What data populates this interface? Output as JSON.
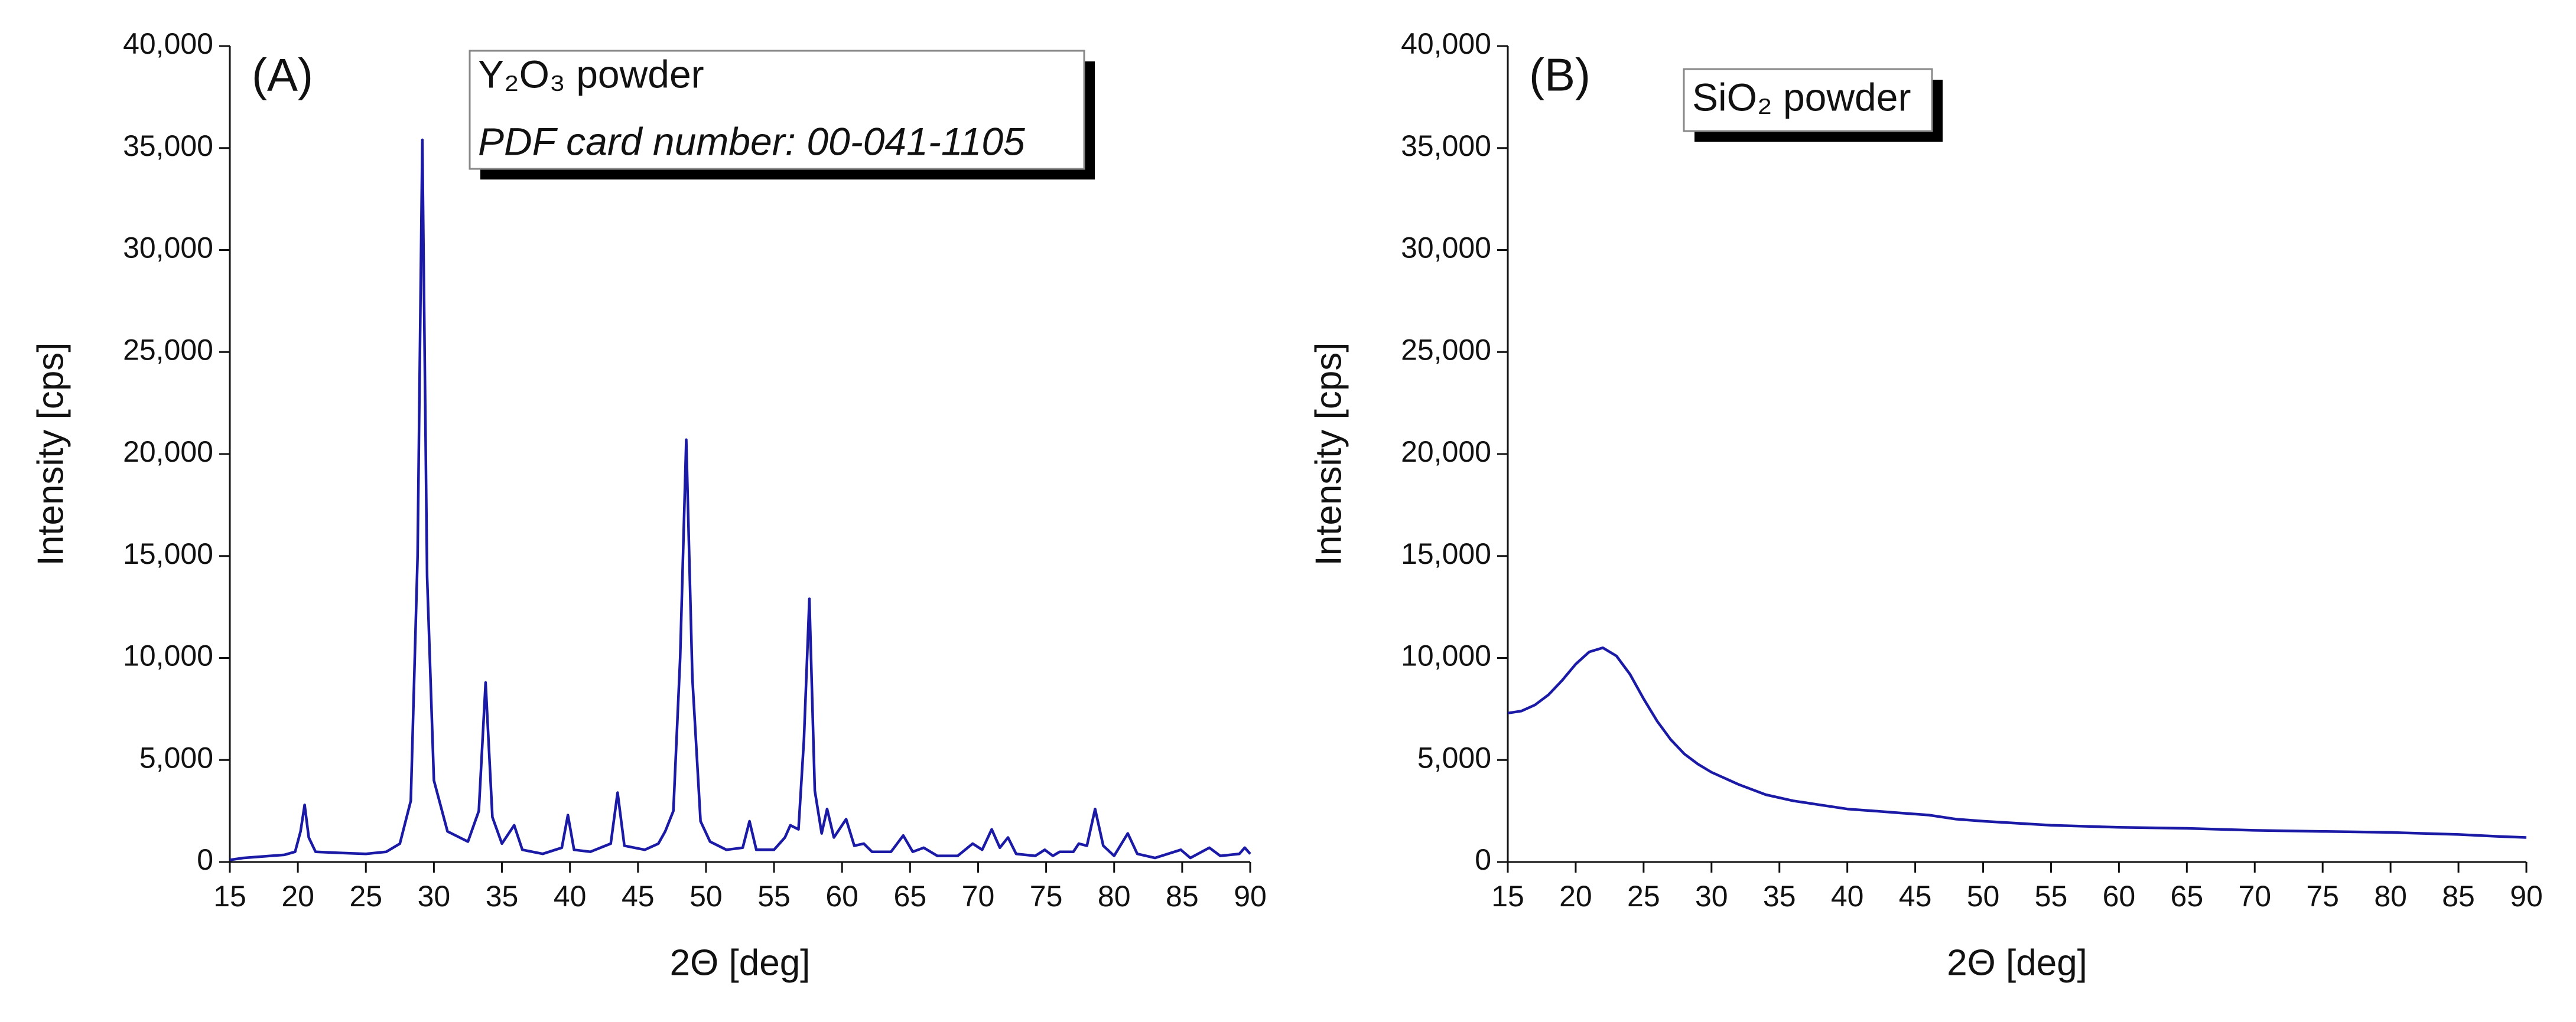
{
  "chart_data": [
    {
      "type": "line",
      "panel_label": "(A)",
      "annotations": [
        "Y₂O₃ powder",
        "PDF card number: 00-041-1105"
      ],
      "xlabel": "2Θ [deg]",
      "ylabel": "Intensity [cps]",
      "color": "#1a1aa6",
      "xlim": [
        15,
        90
      ],
      "ylim": [
        0,
        40000
      ],
      "xticks": [
        15,
        20,
        25,
        30,
        35,
        40,
        45,
        50,
        55,
        60,
        65,
        70,
        75,
        80,
        85,
        90
      ],
      "yticks": [
        0,
        {
          "value": 5000,
          "label": "5,000"
        },
        {
          "value": 10000,
          "label": "10,000"
        },
        {
          "value": 15000,
          "label": "15,000"
        },
        {
          "value": 20000,
          "label": "20,000"
        },
        {
          "value": 25000,
          "label": "25,000"
        },
        {
          "value": 30000,
          "label": "30,000"
        },
        {
          "value": 35000,
          "label": "35,000"
        },
        {
          "value": 40000,
          "label": "40,000"
        }
      ],
      "x": [
        15,
        16,
        17,
        18,
        19,
        19.8,
        20.2,
        20.5,
        20.8,
        21.3,
        23,
        25,
        26.5,
        27.5,
        28.3,
        28.8,
        29.15,
        29.5,
        30,
        31,
        32.5,
        33.3,
        33.8,
        34.3,
        35,
        35.9,
        36.5,
        38,
        39.4,
        39.85,
        40.3,
        41.5,
        43,
        43.5,
        44,
        45.5,
        46.5,
        47,
        47.6,
        48.1,
        48.55,
        49,
        49.6,
        50.3,
        51.5,
        52.7,
        53.2,
        53.7,
        55,
        55.8,
        56.2,
        56.8,
        57.2,
        57.6,
        58,
        58.5,
        58.9,
        59.4,
        60.3,
        60.9,
        61.6,
        62.2,
        63,
        63.6,
        64.5,
        65.2,
        66,
        67,
        68.5,
        69.6,
        70.3,
        71,
        71.6,
        72.2,
        72.8,
        74.2,
        74.9,
        75.5,
        76,
        77,
        77.4,
        78,
        78.6,
        79.2,
        80,
        81,
        81.7,
        83,
        84.9,
        85.6,
        87,
        87.8,
        89.2,
        89.6,
        90
      ],
      "values": [
        100,
        200,
        250,
        300,
        350,
        500,
        1500,
        2800,
        1200,
        500,
        450,
        400,
        500,
        900,
        3000,
        15000,
        35400,
        14000,
        4000,
        1500,
        1000,
        2500,
        8800,
        2200,
        900,
        1800,
        600,
        400,
        700,
        2300,
        600,
        500,
        900,
        3400,
        800,
        600,
        900,
        1500,
        2500,
        10000,
        20700,
        9000,
        2000,
        1000,
        600,
        700,
        2000,
        600,
        600,
        1200,
        1800,
        1600,
        6000,
        12900,
        3500,
        1400,
        2600,
        1200,
        2100,
        800,
        900,
        500,
        500,
        500,
        1300,
        500,
        700,
        300,
        300,
        900,
        600,
        1600,
        700,
        1200,
        400,
        300,
        600,
        300,
        500,
        500,
        900,
        800,
        2600,
        800,
        300,
        1400,
        400,
        200,
        600,
        200,
        700,
        300,
        400,
        700,
        400
      ]
    },
    {
      "type": "line",
      "panel_label": "(B)",
      "annotations": [
        "SiO₂ powder"
      ],
      "xlabel": "2Θ [deg]",
      "ylabel": "Intensity [cps]",
      "color": "#1a1aa6",
      "xlim": [
        15,
        90
      ],
      "ylim": [
        0,
        40000
      ],
      "xticks": [
        15,
        20,
        25,
        30,
        35,
        40,
        45,
        50,
        55,
        60,
        65,
        70,
        75,
        80,
        85,
        90
      ],
      "yticks": [
        0,
        {
          "value": 5000,
          "label": "5,000"
        },
        {
          "value": 10000,
          "label": "10,000"
        },
        {
          "value": 15000,
          "label": "15,000"
        },
        {
          "value": 20000,
          "label": "20,000"
        },
        {
          "value": 25000,
          "label": "25,000"
        },
        {
          "value": 30000,
          "label": "30,000"
        },
        {
          "value": 35000,
          "label": "35,000"
        },
        {
          "value": 40000,
          "label": "40,000"
        }
      ],
      "x": [
        15,
        16,
        17,
        18,
        19,
        20,
        21,
        22,
        23,
        24,
        25,
        26,
        27,
        28,
        29,
        30,
        32,
        34,
        36,
        38,
        40,
        42,
        44,
        46,
        48,
        50,
        55,
        60,
        65,
        70,
        75,
        80,
        85,
        88,
        90
      ],
      "values": [
        7300,
        7400,
        7700,
        8200,
        8900,
        9700,
        10300,
        10500,
        10100,
        9200,
        8000,
        6900,
        6000,
        5300,
        4800,
        4400,
        3800,
        3300,
        3000,
        2800,
        2600,
        2500,
        2400,
        2300,
        2100,
        2000,
        1800,
        1700,
        1650,
        1550,
        1500,
        1450,
        1350,
        1250,
        1200
      ]
    }
  ]
}
